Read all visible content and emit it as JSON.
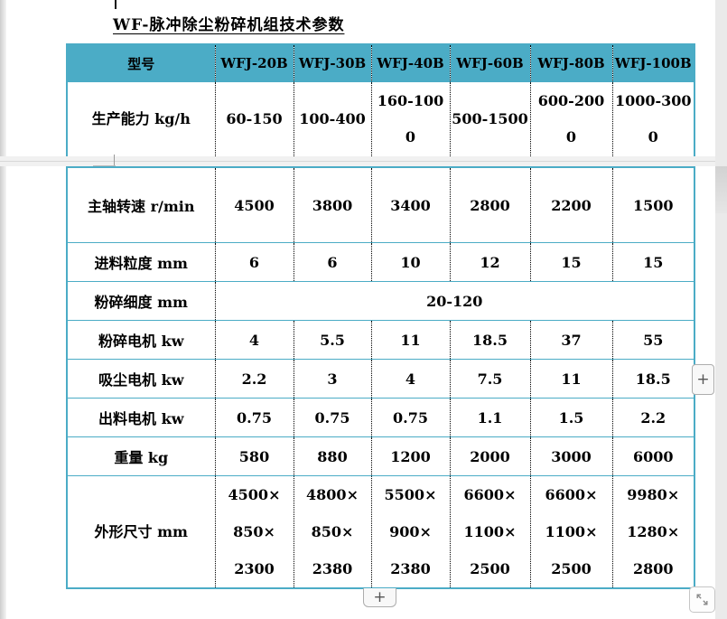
{
  "doc": {
    "title": "WF-脉冲除尘粉碎机组技术参数"
  },
  "colors": {
    "accent_teal": "#4BACC6",
    "grid_dotted": "#000000"
  },
  "table": {
    "header": {
      "model_label": "型号",
      "models": [
        "WFJ-20B",
        "WFJ-30B",
        "WFJ-40B",
        "WFJ-60B",
        "WFJ-80B",
        "WFJ-100B"
      ]
    },
    "capacity_row": {
      "label": "生产能力 kg/h",
      "values": [
        "60-150",
        "100-400",
        "160-1000",
        "500-1500",
        "600-2000",
        "1000-3000"
      ]
    },
    "rows": [
      {
        "label": "主轴转速 r/min",
        "values": [
          "4500",
          "3800",
          "3400",
          "2800",
          "2200",
          "1500"
        ]
      },
      {
        "label": "进料粒度 mm",
        "values": [
          "6",
          "6",
          "10",
          "12",
          "15",
          "15"
        ]
      },
      {
        "label": "粉碎细度 mm",
        "merged_value": "20-120"
      },
      {
        "label": "粉碎电机 kw",
        "values": [
          "4",
          "5.5",
          "11",
          "18.5",
          "37",
          "55"
        ]
      },
      {
        "label": "吸尘电机 kw",
        "values": [
          "2.2",
          "3",
          "4",
          "7.5",
          "11",
          "18.5"
        ]
      },
      {
        "label": "出料电机 kw",
        "values": [
          "0.75",
          "0.75",
          "0.75",
          "1.1",
          "1.5",
          "2.2"
        ]
      },
      {
        "label": "重量 kg",
        "values": [
          "580",
          "880",
          "1200",
          "2000",
          "3000",
          "6000"
        ]
      },
      {
        "label": "外形尺寸 mm",
        "values": [
          "4500×850×2300",
          "4800×850×2380",
          "5500×900×2380",
          "6600×1100×2500",
          "6600×1100×2500",
          "9980×1280×2800"
        ]
      }
    ]
  },
  "controls": {
    "expand_column_button": "+",
    "add_row_button": "+"
  }
}
